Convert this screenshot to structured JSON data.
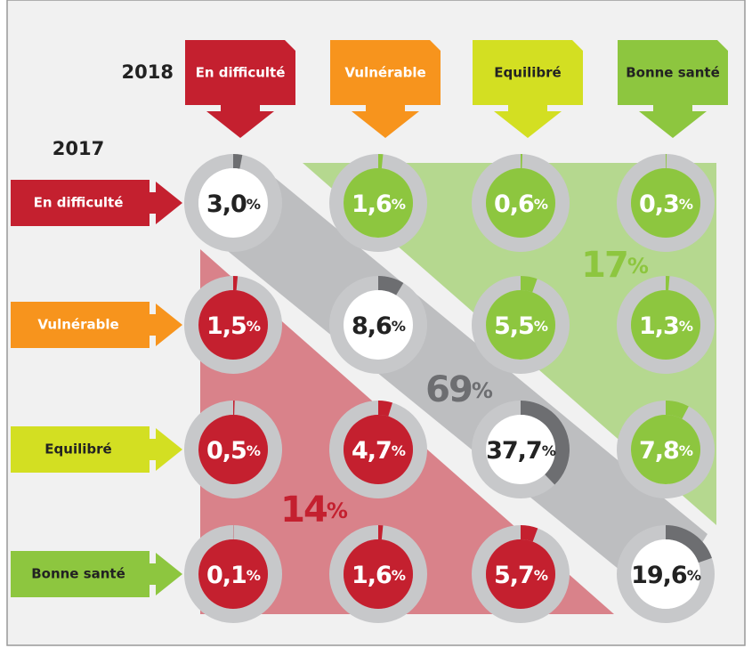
{
  "year_columns": "2018",
  "year_rows": "2017",
  "columns": [
    "En difficulté",
    "Vulnérable",
    "Equilibré",
    "Bonne santé"
  ],
  "rows": [
    "En difficulté",
    "Vulnérable",
    "Equilibré",
    "Bonne santé"
  ],
  "colors": [
    "#c4202f",
    "#f7941d",
    "#d3df22",
    "#8dc63f"
  ],
  "matrix": {
    "values": [
      [
        3.0,
        1.6,
        0.6,
        0.3
      ],
      [
        1.5,
        8.6,
        5.5,
        1.3
      ],
      [
        0.5,
        4.7,
        37.7,
        7.8
      ],
      [
        0.1,
        1.6,
        5.7,
        19.6
      ]
    ],
    "value_labels": [
      [
        "3,0%",
        "1,6%",
        "0,6%",
        "0,3%"
      ],
      [
        "1,5%",
        "8,6%",
        "5,5%",
        "1,3%"
      ],
      [
        "0,5%",
        "4,7%",
        "37,7%",
        "7,8%"
      ],
      [
        "0,1%",
        "1,6%",
        "5,7%",
        "19,6%"
      ]
    ]
  },
  "totals": [
    "17%",
    "69%",
    "14%"
  ]
}
